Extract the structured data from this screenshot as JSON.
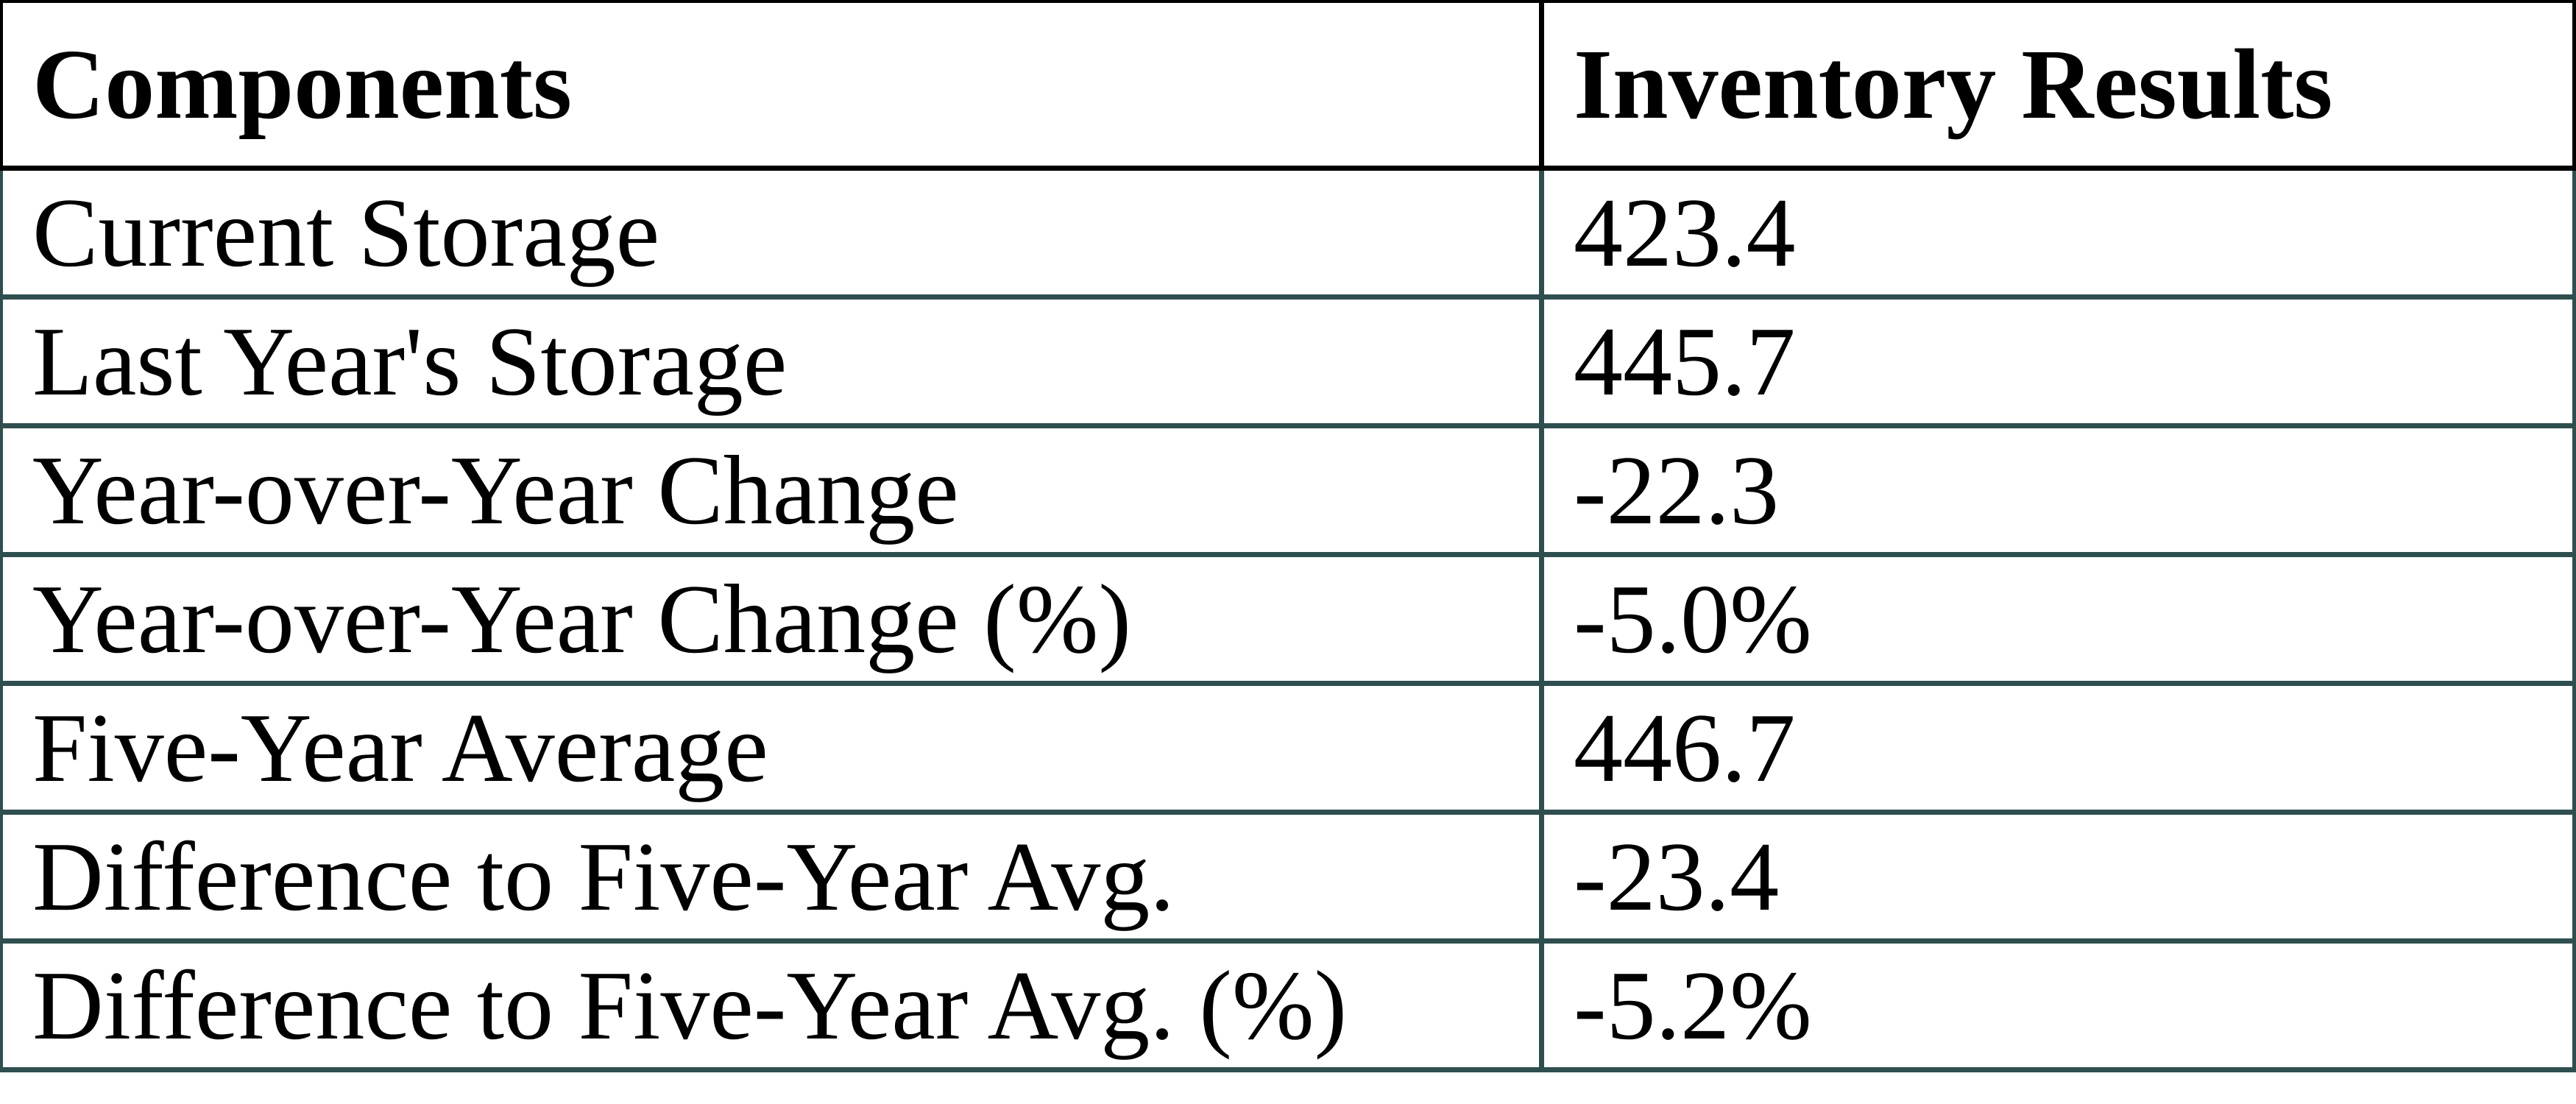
{
  "colors": {
    "grid_line": "#2F4F4F",
    "header_border": "#000000",
    "text": "#000000",
    "background": "#FFFFFF"
  },
  "chart_data": {
    "type": "table",
    "columns": [
      "Components",
      "Inventory Results"
    ],
    "rows": [
      {
        "label": "Current Storage",
        "value": "423.4"
      },
      {
        "label": "Last Year's Storage",
        "value": "445.7"
      },
      {
        "label": "Year-over-Year Change",
        "value": "-22.3"
      },
      {
        "label": "Year-over-Year Change (%)",
        "value": "-5.0%"
      },
      {
        "label": "Five-Year Average",
        "value": "446.7"
      },
      {
        "label": "Difference to Five-Year Avg.",
        "value": "-23.4"
      },
      {
        "label": "Difference to Five-Year Avg. (%)",
        "value": "-5.2%"
      }
    ]
  }
}
